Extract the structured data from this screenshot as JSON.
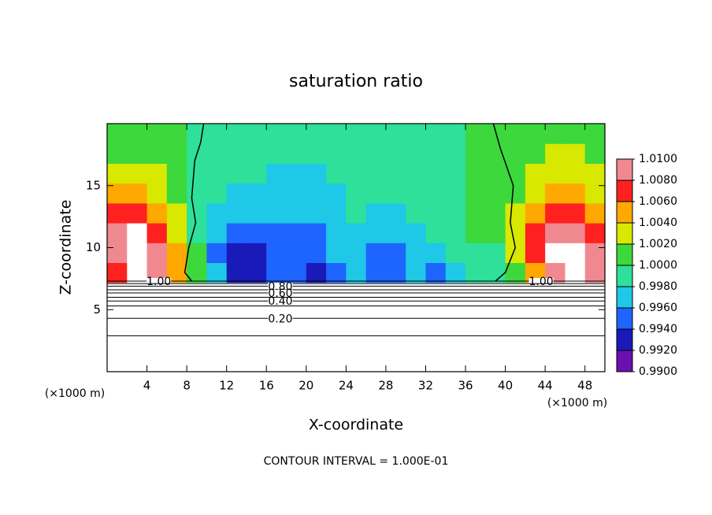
{
  "chart_data": {
    "type": "contour",
    "title": "saturation ratio",
    "x_label": "X-coordinate",
    "y_label": "Z-coordinate",
    "x_unit": "(×1000 m)",
    "footer": "CONTOUR INTERVAL = 1.000E-01",
    "xlim": [
      0,
      50
    ],
    "ylim": [
      0,
      20
    ],
    "xticks": [
      4,
      8,
      12,
      16,
      20,
      24,
      28,
      32,
      36,
      40,
      44,
      48
    ],
    "yticks": [
      5,
      10,
      15
    ],
    "colorbar": {
      "lim": [
        0.99,
        1.01
      ],
      "ticks": [
        {
          "value": 0.99,
          "label": "0.9900"
        },
        {
          "value": 0.992,
          "label": "0.9920"
        },
        {
          "value": 0.994,
          "label": "0.9940"
        },
        {
          "value": 0.996,
          "label": "0.9960"
        },
        {
          "value": 0.998,
          "label": "0.9980"
        },
        {
          "value": 1.0,
          "label": "1.0000"
        },
        {
          "value": 1.002,
          "label": "1.0020"
        },
        {
          "value": 1.004,
          "label": "1.0040"
        },
        {
          "value": 1.006,
          "label": "1.0060"
        },
        {
          "value": 1.008,
          "label": "1.0080"
        },
        {
          "value": 1.01,
          "label": "1.0100"
        }
      ],
      "colors": [
        "#6a10b0",
        "#1a1ab8",
        "#1e64ff",
        "#1ec8e6",
        "#2ee09a",
        "#3cd83c",
        "#d8e800",
        "#ffa800",
        "#ff2020",
        "#f08890"
      ]
    },
    "field": {
      "x": [
        1,
        3,
        5,
        7,
        9,
        11,
        13,
        15,
        17,
        19,
        21,
        23,
        25,
        27,
        29,
        31,
        33,
        35,
        37,
        39,
        41,
        43,
        45,
        47,
        49
      ],
      "z": [
        8,
        9.6,
        11.2,
        12.8,
        14.4,
        16,
        17.6,
        19.2
      ],
      "values": [
        [
          1.006,
          1.011,
          1.008,
          1.004,
          1.0,
          0.996,
          0.993,
          0.992,
          0.994,
          0.995,
          0.993,
          0.995,
          0.997,
          0.995,
          0.994,
          0.996,
          0.995,
          0.997,
          0.998,
          0.999,
          1.001,
          1.005,
          1.008,
          1.011,
          1.008
        ],
        [
          1.008,
          1.011,
          1.008,
          1.004,
          1.0,
          0.995,
          0.993,
          0.992,
          0.994,
          0.995,
          0.994,
          0.996,
          0.997,
          0.995,
          0.994,
          0.996,
          0.996,
          0.998,
          0.999,
          0.999,
          1.002,
          1.006,
          1.011,
          1.011,
          1.008
        ],
        [
          1.009,
          1.011,
          1.007,
          1.003,
          0.999,
          0.996,
          0.995,
          0.994,
          0.995,
          0.995,
          0.995,
          0.996,
          0.997,
          0.996,
          0.996,
          0.997,
          0.998,
          0.999,
          1.0,
          1.0,
          1.002,
          1.006,
          1.009,
          1.008,
          1.006
        ],
        [
          1.007,
          1.007,
          1.005,
          1.002,
          0.999,
          0.997,
          0.996,
          0.996,
          0.996,
          0.996,
          0.996,
          0.997,
          0.998,
          0.997,
          0.997,
          0.998,
          0.998,
          0.999,
          1.0,
          1.0,
          1.002,
          1.004,
          1.006,
          1.006,
          1.005
        ],
        [
          1.004,
          1.004,
          1.003,
          1.001,
          0.999,
          0.998,
          0.997,
          0.997,
          0.996,
          0.996,
          0.996,
          0.997,
          0.998,
          0.998,
          0.998,
          0.998,
          0.999,
          0.999,
          1.0,
          1.0,
          1.001,
          1.003,
          1.004,
          1.004,
          1.003
        ],
        [
          1.002,
          1.002,
          1.002,
          1.001,
          0.999,
          0.999,
          0.998,
          0.998,
          0.997,
          0.997,
          0.997,
          0.998,
          0.998,
          0.999,
          0.999,
          0.999,
          0.999,
          0.999,
          1.0,
          1.0,
          1.001,
          1.002,
          1.003,
          1.002,
          1.002
        ],
        [
          1.001,
          1.001,
          1.001,
          1.0,
          0.999,
          0.999,
          0.999,
          0.999,
          0.998,
          0.998,
          0.998,
          0.999,
          0.999,
          0.999,
          0.999,
          0.999,
          0.999,
          0.999,
          1.0,
          1.0,
          1.0,
          1.001,
          1.002,
          1.002,
          1.001
        ],
        [
          1.0,
          1.001,
          1.001,
          1.0,
          0.999,
          0.999,
          0.999,
          0.999,
          0.999,
          0.999,
          0.999,
          0.999,
          0.999,
          0.999,
          0.999,
          0.999,
          0.999,
          0.999,
          1.0,
          1.0,
          1.0,
          1.001,
          1.001,
          1.001,
          1.0
        ]
      ]
    },
    "contour_lines": [
      {
        "z": 7.3,
        "label": "1.00"
      },
      {
        "z": 7.1
      },
      {
        "z": 6.9,
        "label": "0.80"
      },
      {
        "z": 6.6
      },
      {
        "z": 6.35,
        "label": "0.60"
      },
      {
        "z": 6.0
      },
      {
        "z": 5.7,
        "label": "0.40"
      },
      {
        "z": 5.3
      },
      {
        "z": 4.3,
        "label": "0.20"
      },
      {
        "z": 2.9
      }
    ],
    "boundary_contours": [
      {
        "x": [
          9.7,
          9.4,
          8.8,
          8.5,
          8.9,
          8.2,
          8.0,
          7.8,
          8.5
        ],
        "z": [
          20,
          18.5,
          17,
          14,
          12,
          10,
          9,
          8,
          7.3
        ]
      },
      {
        "x": [
          38.8,
          39.5,
          40.8,
          40.5,
          41.0,
          40.0,
          39.0
        ],
        "z": [
          20,
          18,
          15,
          12,
          10,
          8,
          7.3
        ]
      }
    ]
  }
}
